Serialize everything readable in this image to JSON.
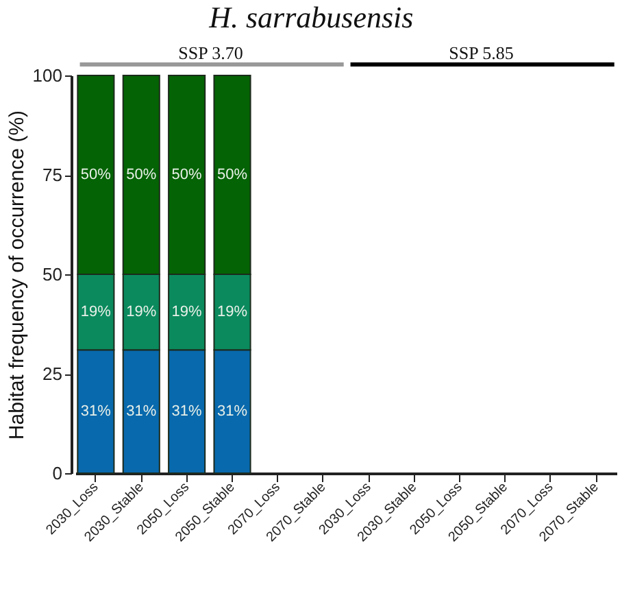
{
  "chart_data": {
    "type": "bar",
    "title": "H. sarrabusensis",
    "ylabel": "Habitat frequency of occurrence (%)",
    "stacked": true,
    "categories": [
      "2030_Loss",
      "2030_Stable",
      "2050_Loss",
      "2050_Stable",
      "2070_Loss",
      "2070_Stable",
      "2030_Loss",
      "2030_Stable",
      "2050_Loss",
      "2050_Stable",
      "2070_Loss",
      "2070_Stable"
    ],
    "annotations": [
      "SSP 3.70",
      "SSP 5.85"
    ],
    "ylim": [
      0,
      100
    ],
    "yticks": [
      0,
      25,
      50,
      75,
      100
    ],
    "series": [
      {
        "color": "#0869ad",
        "values": [
          31,
          31,
          31,
          31,
          null,
          null,
          null,
          null,
          null,
          null,
          null,
          null
        ],
        "value_labels": [
          "31%",
          "31%",
          "31%",
          "31%",
          null,
          null,
          null,
          null,
          null,
          null,
          null,
          null
        ]
      },
      {
        "color": "#0b8a5e",
        "values": [
          19,
          19,
          19,
          19,
          null,
          null,
          null,
          null,
          null,
          null,
          null,
          null
        ],
        "value_labels": [
          "19%",
          "19%",
          "19%",
          "19%",
          null,
          null,
          null,
          null,
          null,
          null,
          null,
          null
        ]
      },
      {
        "color": "#046304",
        "values": [
          50,
          50,
          50,
          50,
          null,
          null,
          null,
          null,
          null,
          null,
          null,
          null
        ],
        "value_labels": [
          "50%",
          "50%",
          "50%",
          "50%",
          null,
          null,
          null,
          null,
          null,
          null,
          null,
          null
        ]
      }
    ]
  }
}
